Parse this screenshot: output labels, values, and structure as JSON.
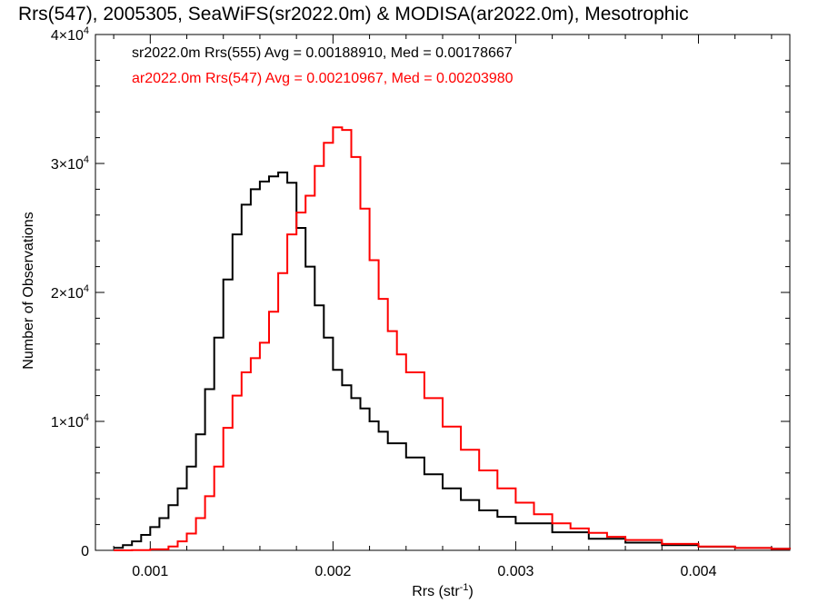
{
  "chart_data": {
    "type": "line",
    "title": "Rrs(547), 2005305, SeaWiFS(sr2022.0m) & MODISA(ar2022.0m), Mesotrophic",
    "xlabel": "Rrs (str",
    "xlabel_sup": "-1",
    "xlabel_close": ")",
    "ylabel": "Number of Observations",
    "xlim": [
      0.0007,
      0.0045
    ],
    "ylim": [
      0,
      40000
    ],
    "x_ticks": [
      {
        "value": 0.001,
        "label": "0.001"
      },
      {
        "value": 0.002,
        "label": "0.002"
      },
      {
        "value": 0.003,
        "label": "0.003"
      },
      {
        "value": 0.004,
        "label": "0.004"
      }
    ],
    "y_ticks": [
      {
        "value": 0,
        "label": "0",
        "exp": ""
      },
      {
        "value": 10000,
        "label": "1×10",
        "exp": "4"
      },
      {
        "value": 20000,
        "label": "2×10",
        "exp": "4"
      },
      {
        "value": 30000,
        "label": "3×10",
        "exp": "4"
      },
      {
        "value": 40000,
        "label": "4×10",
        "exp": "4"
      }
    ],
    "grid": false,
    "legend_position": "top-left",
    "series": [
      {
        "legend": "sr2022.0m Rrs(555) Avg = 0.00188910, Med = 0.00178667",
        "color": "#000000",
        "x": [
          0.0008,
          0.00085,
          0.0009,
          0.00095,
          0.001,
          0.00105,
          0.0011,
          0.00115,
          0.0012,
          0.00125,
          0.0013,
          0.00135,
          0.0014,
          0.00145,
          0.0015,
          0.00155,
          0.0016,
          0.00165,
          0.0017,
          0.00175,
          0.0018,
          0.00185,
          0.0019,
          0.00195,
          0.002,
          0.00205,
          0.0021,
          0.00215,
          0.0022,
          0.00225,
          0.0023,
          0.0024,
          0.0025,
          0.0026,
          0.0027,
          0.0028,
          0.0029,
          0.003,
          0.0032,
          0.0034,
          0.0036,
          0.0038,
          0.004,
          0.0042,
          0.0044,
          0.0045
        ],
        "y": [
          200,
          400,
          700,
          1200,
          1800,
          2500,
          3500,
          4800,
          6500,
          9000,
          12500,
          16500,
          21000,
          24500,
          26800,
          28000,
          28600,
          29000,
          29300,
          28500,
          25000,
          22000,
          19000,
          16500,
          14000,
          12800,
          11800,
          11000,
          10000,
          9200,
          8300,
          7200,
          5900,
          4800,
          3900,
          3100,
          2600,
          2100,
          1400,
          900,
          600,
          400,
          280,
          180,
          120,
          100
        ]
      },
      {
        "legend": "ar2022.0m Rrs(547) Avg = 0.00210967, Med = 0.00203980",
        "color": "#ff0000",
        "x": [
          0.0008,
          0.0009,
          0.001,
          0.0011,
          0.00115,
          0.0012,
          0.00125,
          0.0013,
          0.00135,
          0.0014,
          0.00145,
          0.0015,
          0.00155,
          0.0016,
          0.00165,
          0.0017,
          0.00175,
          0.0018,
          0.00185,
          0.0019,
          0.00195,
          0.002,
          0.00205,
          0.0021,
          0.00215,
          0.0022,
          0.00225,
          0.0023,
          0.00235,
          0.0024,
          0.0025,
          0.0026,
          0.0027,
          0.0028,
          0.0029,
          0.003,
          0.0031,
          0.0032,
          0.0033,
          0.0034,
          0.0035,
          0.0036,
          0.0038,
          0.004,
          0.0042,
          0.0044,
          0.0045
        ],
        "y": [
          0,
          20,
          80,
          300,
          700,
          1300,
          2500,
          4200,
          6500,
          9500,
          12000,
          13800,
          14900,
          16100,
          18500,
          21500,
          24500,
          26200,
          27500,
          29800,
          31600,
          32800,
          32600,
          30500,
          26500,
          22500,
          19500,
          17000,
          15200,
          13800,
          11800,
          9600,
          7800,
          6200,
          4800,
          3700,
          2800,
          2100,
          1700,
          1350,
          1050,
          800,
          500,
          300,
          180,
          110,
          90
        ]
      }
    ]
  }
}
